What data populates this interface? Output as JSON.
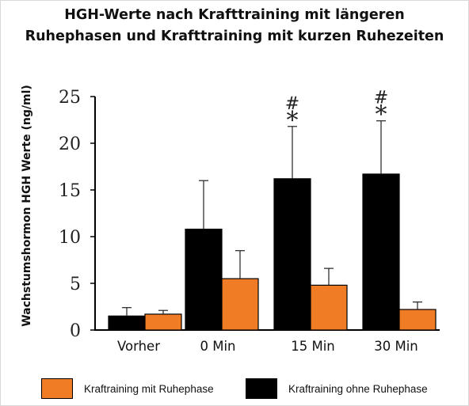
{
  "chart_data": {
    "type": "bar",
    "title": [
      "HGH-Werte nach Krafttraining mit längeren",
      "Ruhephasen und Krafttraining mit kurzen Ruhezeiten"
    ],
    "ylabel": "Wachstumshormon HGH Werte (ng/ml)",
    "xlabel": "",
    "ylim": [
      0,
      25
    ],
    "yticks": [
      0,
      5,
      10,
      15,
      20,
      25
    ],
    "categories": [
      "Vorher",
      "0 Min",
      "15 Min",
      "30 Min"
    ],
    "series": [
      {
        "name": "Kraftraining ohne Ruhephase",
        "color": "#000000",
        "values": [
          1.5,
          10.8,
          16.2,
          16.7
        ],
        "errors": [
          0.9,
          5.2,
          5.6,
          5.7
        ]
      },
      {
        "name": "Kraftraining mit Ruhephase",
        "color": "#f07d26",
        "values": [
          1.7,
          5.5,
          4.8,
          2.2
        ],
        "errors": [
          0.4,
          3.0,
          1.8,
          0.8
        ]
      }
    ],
    "annotations": [
      {
        "category": "15 Min",
        "text": "#"
      },
      {
        "category": "15 Min",
        "text": "*"
      },
      {
        "category": "30 Min",
        "text": "#"
      },
      {
        "category": "30 Min",
        "text": "*"
      }
    ],
    "legend": {
      "placement": "bottom",
      "items": [
        {
          "label": "Kraftraining mit Ruhephase",
          "color": "#f07d26"
        },
        {
          "label": "Kraftraining ohne Ruhephase",
          "color": "#000000"
        }
      ]
    },
    "grid": false
  }
}
